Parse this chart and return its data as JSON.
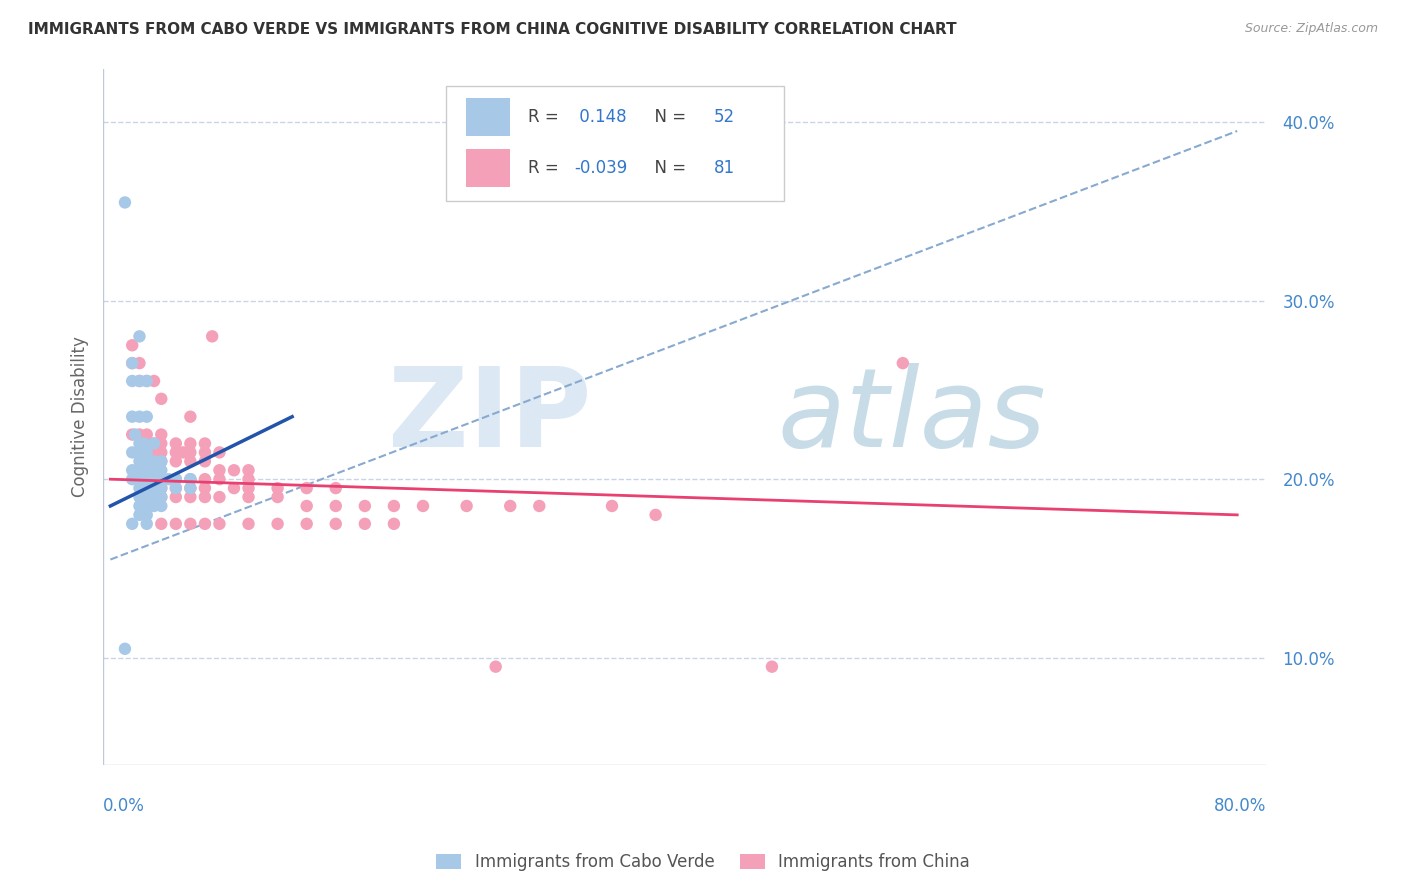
{
  "title": "IMMIGRANTS FROM CABO VERDE VS IMMIGRANTS FROM CHINA COGNITIVE DISABILITY CORRELATION CHART",
  "source_text": "Source: ZipAtlas.com",
  "ylabel": "Cognitive Disability",
  "xlim": [
    0.0,
    0.8
  ],
  "ylim": [
    0.04,
    0.43
  ],
  "ytick_vals": [
    0.1,
    0.2,
    0.3,
    0.4
  ],
  "ytick_labels": [
    "10.0%",
    "20.0%",
    "30.0%",
    "40.0%"
  ],
  "color_cabo": "#a8c8e8",
  "color_china": "#f4a0b8",
  "color_trendline_cabo": "#2255aa",
  "color_trendline_china": "#e84070",
  "color_dashed": "#88aad0",
  "cabo_verde_points": [
    [
      0.015,
      0.355
    ],
    [
      0.02,
      0.265
    ],
    [
      0.02,
      0.255
    ],
    [
      0.025,
      0.28
    ],
    [
      0.025,
      0.255
    ],
    [
      0.03,
      0.255
    ],
    [
      0.02,
      0.235
    ],
    [
      0.025,
      0.235
    ],
    [
      0.03,
      0.235
    ],
    [
      0.022,
      0.225
    ],
    [
      0.025,
      0.22
    ],
    [
      0.028,
      0.22
    ],
    [
      0.02,
      0.215
    ],
    [
      0.025,
      0.215
    ],
    [
      0.03,
      0.215
    ],
    [
      0.035,
      0.22
    ],
    [
      0.025,
      0.21
    ],
    [
      0.03,
      0.21
    ],
    [
      0.035,
      0.21
    ],
    [
      0.04,
      0.21
    ],
    [
      0.02,
      0.205
    ],
    [
      0.025,
      0.205
    ],
    [
      0.03,
      0.205
    ],
    [
      0.035,
      0.205
    ],
    [
      0.04,
      0.205
    ],
    [
      0.02,
      0.2
    ],
    [
      0.025,
      0.2
    ],
    [
      0.03,
      0.2
    ],
    [
      0.035,
      0.2
    ],
    [
      0.04,
      0.2
    ],
    [
      0.045,
      0.2
    ],
    [
      0.05,
      0.2
    ],
    [
      0.06,
      0.2
    ],
    [
      0.025,
      0.195
    ],
    [
      0.03,
      0.195
    ],
    [
      0.035,
      0.195
    ],
    [
      0.04,
      0.195
    ],
    [
      0.05,
      0.195
    ],
    [
      0.06,
      0.195
    ],
    [
      0.025,
      0.19
    ],
    [
      0.03,
      0.19
    ],
    [
      0.035,
      0.19
    ],
    [
      0.04,
      0.19
    ],
    [
      0.025,
      0.185
    ],
    [
      0.03,
      0.185
    ],
    [
      0.035,
      0.185
    ],
    [
      0.04,
      0.185
    ],
    [
      0.025,
      0.18
    ],
    [
      0.03,
      0.18
    ],
    [
      0.02,
      0.175
    ],
    [
      0.03,
      0.175
    ],
    [
      0.015,
      0.105
    ]
  ],
  "china_points": [
    [
      0.075,
      0.28
    ],
    [
      0.02,
      0.275
    ],
    [
      0.02,
      0.265
    ],
    [
      0.025,
      0.265
    ],
    [
      0.025,
      0.255
    ],
    [
      0.03,
      0.255
    ],
    [
      0.035,
      0.255
    ],
    [
      0.04,
      0.245
    ],
    [
      0.06,
      0.235
    ],
    [
      0.02,
      0.225
    ],
    [
      0.025,
      0.225
    ],
    [
      0.03,
      0.225
    ],
    [
      0.04,
      0.225
    ],
    [
      0.035,
      0.22
    ],
    [
      0.04,
      0.22
    ],
    [
      0.05,
      0.22
    ],
    [
      0.06,
      0.22
    ],
    [
      0.07,
      0.22
    ],
    [
      0.035,
      0.215
    ],
    [
      0.04,
      0.215
    ],
    [
      0.05,
      0.215
    ],
    [
      0.055,
      0.215
    ],
    [
      0.06,
      0.215
    ],
    [
      0.07,
      0.215
    ],
    [
      0.08,
      0.215
    ],
    [
      0.035,
      0.21
    ],
    [
      0.04,
      0.21
    ],
    [
      0.05,
      0.21
    ],
    [
      0.06,
      0.21
    ],
    [
      0.07,
      0.21
    ],
    [
      0.08,
      0.205
    ],
    [
      0.09,
      0.205
    ],
    [
      0.1,
      0.205
    ],
    [
      0.035,
      0.2
    ],
    [
      0.04,
      0.2
    ],
    [
      0.05,
      0.2
    ],
    [
      0.06,
      0.2
    ],
    [
      0.07,
      0.2
    ],
    [
      0.08,
      0.2
    ],
    [
      0.1,
      0.2
    ],
    [
      0.035,
      0.195
    ],
    [
      0.04,
      0.195
    ],
    [
      0.05,
      0.195
    ],
    [
      0.06,
      0.195
    ],
    [
      0.07,
      0.195
    ],
    [
      0.09,
      0.195
    ],
    [
      0.1,
      0.195
    ],
    [
      0.12,
      0.195
    ],
    [
      0.14,
      0.195
    ],
    [
      0.16,
      0.195
    ],
    [
      0.035,
      0.19
    ],
    [
      0.04,
      0.19
    ],
    [
      0.05,
      0.19
    ],
    [
      0.06,
      0.19
    ],
    [
      0.07,
      0.19
    ],
    [
      0.08,
      0.19
    ],
    [
      0.1,
      0.19
    ],
    [
      0.12,
      0.19
    ],
    [
      0.14,
      0.185
    ],
    [
      0.16,
      0.185
    ],
    [
      0.18,
      0.185
    ],
    [
      0.2,
      0.185
    ],
    [
      0.22,
      0.185
    ],
    [
      0.25,
      0.185
    ],
    [
      0.28,
      0.185
    ],
    [
      0.3,
      0.185
    ],
    [
      0.35,
      0.185
    ],
    [
      0.38,
      0.18
    ],
    [
      0.04,
      0.175
    ],
    [
      0.05,
      0.175
    ],
    [
      0.06,
      0.175
    ],
    [
      0.07,
      0.175
    ],
    [
      0.08,
      0.175
    ],
    [
      0.1,
      0.175
    ],
    [
      0.12,
      0.175
    ],
    [
      0.14,
      0.175
    ],
    [
      0.16,
      0.175
    ],
    [
      0.18,
      0.175
    ],
    [
      0.2,
      0.175
    ],
    [
      0.55,
      0.265
    ],
    [
      0.46,
      0.095
    ],
    [
      0.27,
      0.095
    ]
  ],
  "cabo_trend_x": [
    0.005,
    0.13
  ],
  "cabo_trend_y": [
    0.185,
    0.235
  ],
  "china_trend_x": [
    0.005,
    0.78
  ],
  "china_trend_y": [
    0.2,
    0.18
  ],
  "dashed_trend_x": [
    0.005,
    0.78
  ],
  "dashed_trend_y": [
    0.155,
    0.395
  ]
}
